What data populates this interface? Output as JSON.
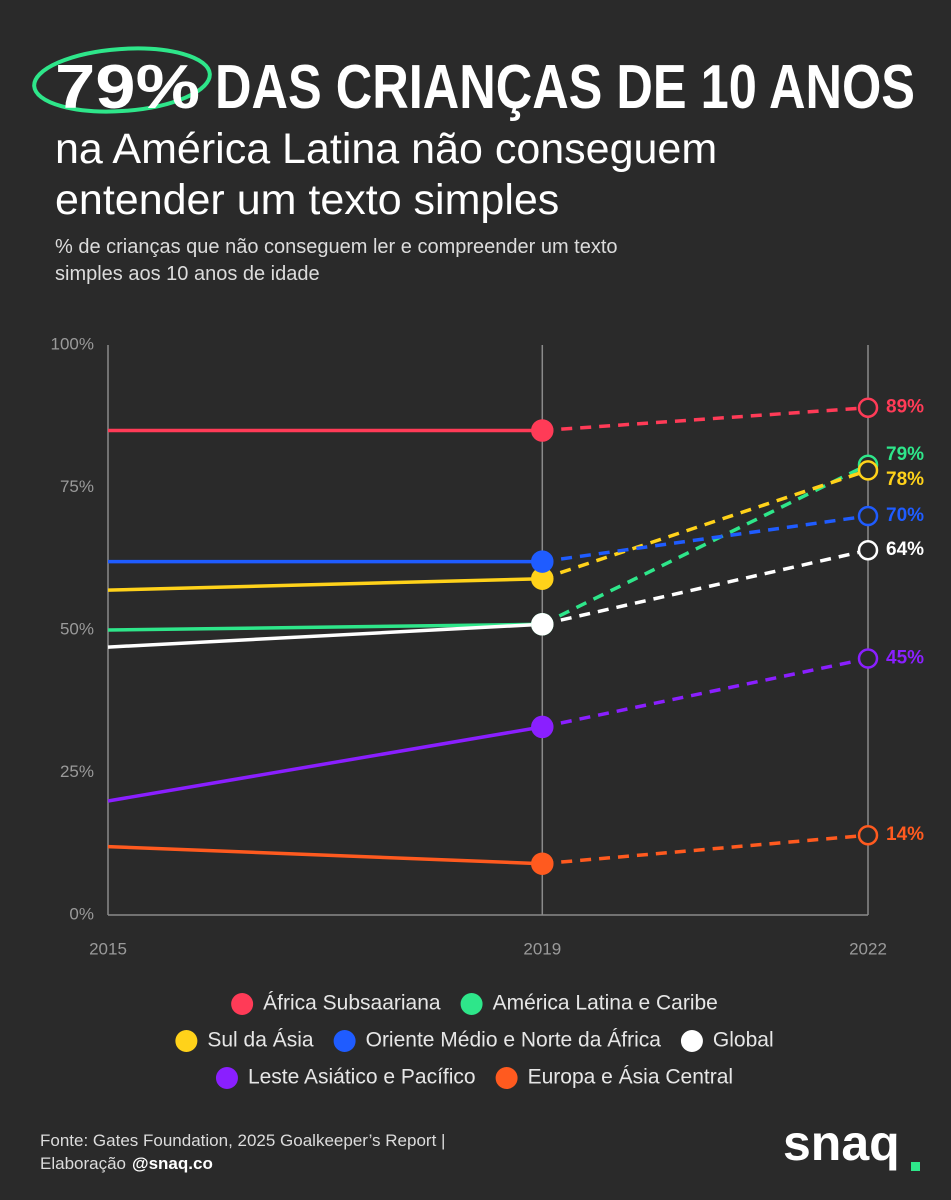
{
  "title_highlight": "79%",
  "title": "DAS CRIANÇAS DE 10 ANOS",
  "subtitle": [
    "na América Latina não conseguem",
    "entender um texto simples"
  ],
  "description": [
    "% de crianças que não conseguem ler e compreender um texto",
    "simples aos 10 anos de idade"
  ],
  "chart_data": {
    "type": "line",
    "x": [
      2015,
      2019,
      2022
    ],
    "xlim": [
      2015,
      2022
    ],
    "xticks": [
      2015,
      2019,
      2022
    ],
    "ylim": [
      0,
      100
    ],
    "yticks": [
      {
        "value": 0,
        "label": "0%"
      },
      {
        "value": 25,
        "label": "25%"
      },
      {
        "value": 50,
        "label": "50%"
      },
      {
        "value": 75,
        "label": "75%"
      },
      {
        "value": 100,
        "label": "100%"
      }
    ],
    "series": [
      {
        "name": "África Subsaariana",
        "color": "#ff3b57",
        "values": [
          85,
          85,
          89
        ],
        "value_labels": [
          null,
          null,
          "89%"
        ]
      },
      {
        "name": "América Latina e Caribe",
        "color": "#2ee68a",
        "values": [
          50,
          51,
          79
        ],
        "value_labels": [
          null,
          null,
          "79%"
        ]
      },
      {
        "name": "Sul da Ásia",
        "color": "#ffd21a",
        "values": [
          57,
          59,
          78
        ],
        "value_labels": [
          null,
          null,
          "78%"
        ]
      },
      {
        "name": "Oriente Médio e Norte da África",
        "color": "#1f5cff",
        "values": [
          62,
          62,
          70
        ],
        "value_labels": [
          null,
          null,
          "70%"
        ]
      },
      {
        "name": "Global",
        "color": "#ffffff",
        "values": [
          47,
          51,
          64
        ],
        "value_labels": [
          null,
          null,
          "64%"
        ]
      },
      {
        "name": "Leste Asiático e Pacífico",
        "color": "#8a1fff",
        "values": [
          20,
          33,
          45
        ],
        "value_labels": [
          null,
          null,
          "45%"
        ]
      },
      {
        "name": "Europa e Ásia Central",
        "color": "#ff5a1f",
        "values": [
          12,
          9,
          14
        ],
        "value_labels": [
          null,
          null,
          "14%"
        ]
      }
    ]
  },
  "source": [
    "Fonte: Gates Foundation, 2025 Goalkeeper’s Report |",
    "Elaboração"
  ],
  "source_handle": "@snaq.co",
  "logo": "snaq"
}
